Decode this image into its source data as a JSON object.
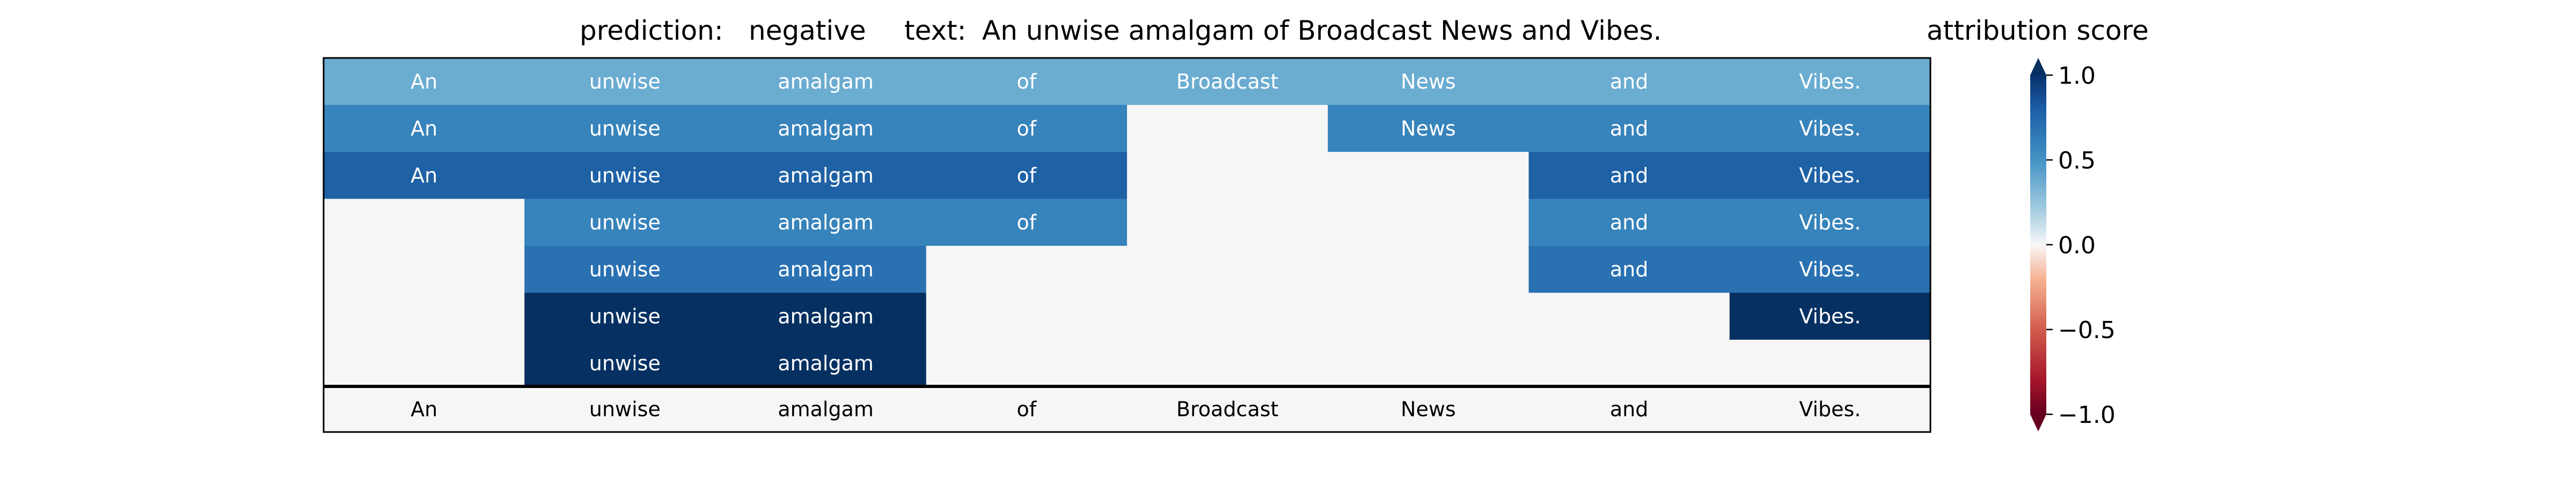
{
  "header": {
    "prediction_label": "prediction:",
    "prediction_value": "negative",
    "text_label": "text:",
    "text_value": "An unwise amalgam of Broadcast News and Vibes.",
    "colorbar_title": "attribution score"
  },
  "chart_data": {
    "type": "heatmap",
    "tokens": [
      "An",
      "unwise",
      "amalgam",
      "of",
      "Broadcast",
      "News",
      "and",
      "Vibes."
    ],
    "rows": [
      {
        "present": [
          true,
          true,
          true,
          true,
          true,
          true,
          true,
          true
        ],
        "values": [
          0.5,
          0.5,
          0.5,
          0.5,
          0.5,
          0.5,
          0.5,
          0.5
        ]
      },
      {
        "present": [
          true,
          true,
          true,
          true,
          false,
          true,
          true,
          true
        ],
        "values": [
          0.67,
          0.67,
          0.67,
          0.67,
          null,
          0.67,
          0.67,
          0.67
        ]
      },
      {
        "present": [
          true,
          true,
          true,
          true,
          false,
          false,
          true,
          true
        ],
        "values": [
          0.82,
          0.82,
          0.82,
          0.82,
          null,
          null,
          0.82,
          0.82
        ]
      },
      {
        "present": [
          false,
          true,
          true,
          true,
          false,
          false,
          true,
          true
        ],
        "values": [
          null,
          0.67,
          0.67,
          0.67,
          null,
          null,
          0.67,
          0.67
        ]
      },
      {
        "present": [
          false,
          true,
          true,
          false,
          false,
          false,
          true,
          true
        ],
        "values": [
          null,
          0.75,
          0.75,
          null,
          null,
          null,
          0.75,
          0.75
        ]
      },
      {
        "present": [
          false,
          true,
          true,
          false,
          false,
          false,
          false,
          true
        ],
        "values": [
          null,
          1.0,
          1.0,
          null,
          null,
          null,
          null,
          1.0
        ]
      },
      {
        "present": [
          false,
          true,
          true,
          false,
          false,
          false,
          false,
          false
        ],
        "values": [
          null,
          1.0,
          1.0,
          null,
          null,
          null,
          null,
          null
        ]
      }
    ],
    "baseline_row_tokens": [
      "An",
      "unwise",
      "amalgam",
      "of",
      "Broadcast",
      "News",
      "and",
      "Vibes."
    ],
    "colorbar": {
      "min": -1.0,
      "max": 1.0,
      "ticks": [
        1.0,
        0.5,
        0.0,
        -0.5,
        -1.0
      ],
      "tick_labels": [
        "1.0",
        "0.5",
        "0.0",
        "−0.5",
        "−1.0"
      ],
      "colormap": "RdBu",
      "extend": "both"
    },
    "colors": {
      "empty_cell": "#f5f6f6",
      "grid_line": "#000000"
    }
  }
}
